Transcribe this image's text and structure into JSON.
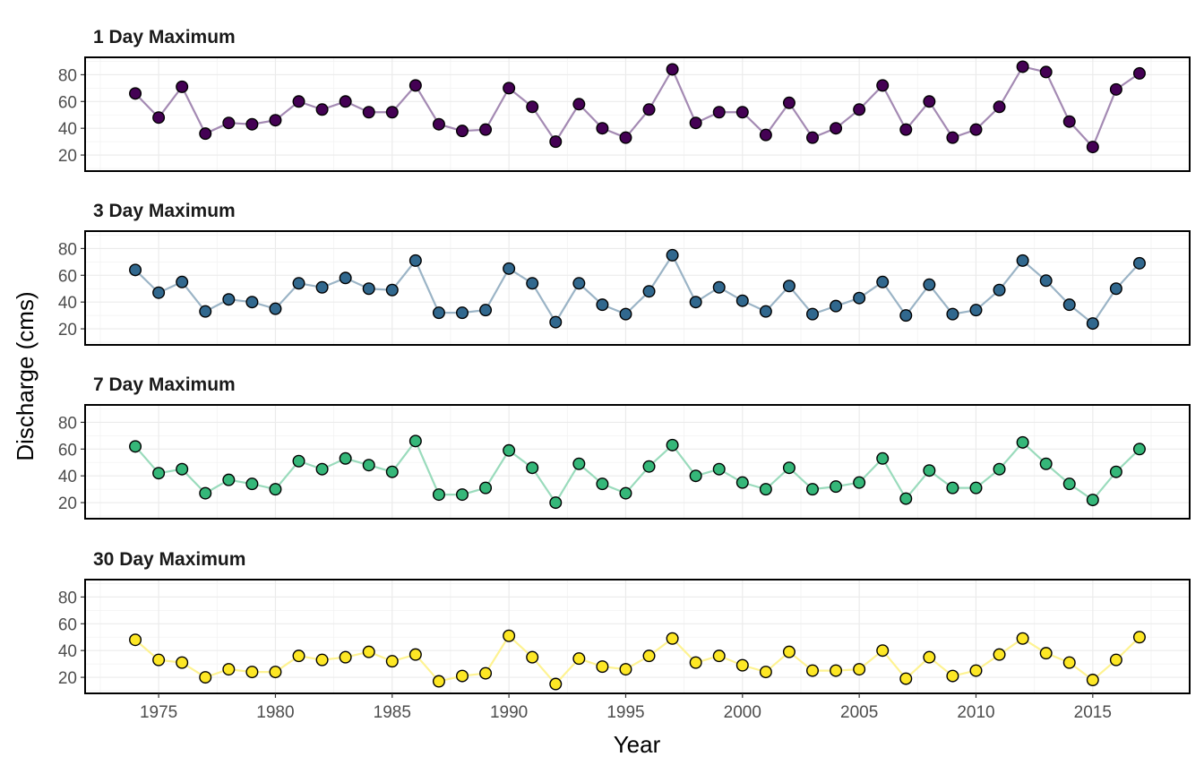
{
  "chart_data": {
    "type": "line",
    "layout": "faceted",
    "xlabel": "Year",
    "ylabel": "Discharge (cms)",
    "xlim": [
      1971.85,
      1019.15
    ],
    "ylim": [
      8,
      93
    ],
    "xticks": [
      1975,
      1980,
      1985,
      1990,
      1995,
      2000,
      2005,
      2010,
      2015
    ],
    "yticks": [
      20,
      40,
      60,
      80
    ],
    "grid": true,
    "legend": "none",
    "x": [
      1974,
      1975,
      1976,
      1977,
      1978,
      1979,
      1980,
      1981,
      1982,
      1983,
      1984,
      1985,
      1986,
      1987,
      1988,
      1989,
      1990,
      1991,
      1992,
      1993,
      1994,
      1995,
      1996,
      1997,
      1998,
      1999,
      2000,
      2001,
      2002,
      2003,
      2004,
      2005,
      2006,
      2007,
      2008,
      2009,
      2010,
      2011,
      2012,
      2013,
      2014,
      2015,
      2016,
      2017
    ],
    "series": [
      {
        "name": "1 Day Maximum",
        "fill": "#440154",
        "line": "#a48ab3",
        "values": [
          66,
          48,
          71,
          36,
          44,
          43,
          46,
          60,
          54,
          60,
          52,
          52,
          72,
          43,
          38,
          39,
          70,
          56,
          30,
          58,
          40,
          33,
          54,
          84,
          44,
          52,
          52,
          35,
          59,
          33,
          40,
          54,
          72,
          39,
          60,
          33,
          39,
          56,
          86,
          82,
          45,
          26,
          69,
          81
        ]
      },
      {
        "name": "3 Day Maximum",
        "fill": "#31688e",
        "line": "#9bb4c6",
        "values": [
          64,
          47,
          55,
          33,
          42,
          40,
          35,
          54,
          51,
          58,
          50,
          49,
          71,
          32,
          32,
          34,
          65,
          54,
          25,
          54,
          38,
          31,
          48,
          75,
          40,
          51,
          41,
          33,
          52,
          31,
          37,
          43,
          55,
          30,
          53,
          31,
          34,
          49,
          71,
          56,
          38,
          24,
          50,
          69
        ]
      },
      {
        "name": "7 Day Maximum",
        "fill": "#35b779",
        "line": "#9adbbc",
        "values": [
          62,
          42,
          45,
          27,
          37,
          34,
          30,
          51,
          45,
          53,
          48,
          43,
          66,
          26,
          26,
          31,
          59,
          46,
          20,
          49,
          34,
          27,
          47,
          63,
          40,
          45,
          35,
          30,
          46,
          30,
          32,
          35,
          53,
          23,
          44,
          31,
          31,
          45,
          65,
          49,
          34,
          22,
          43,
          60
        ]
      },
      {
        "name": "30 Day Maximum",
        "fill": "#fde725",
        "line": "#fef392",
        "values": [
          48,
          33,
          31,
          20,
          26,
          24,
          24,
          36,
          33,
          35,
          39,
          32,
          37,
          17,
          21,
          23,
          51,
          35,
          15,
          34,
          28,
          26,
          36,
          49,
          31,
          36,
          29,
          24,
          39,
          25,
          25,
          26,
          40,
          19,
          35,
          21,
          25,
          37,
          49,
          38,
          31,
          18,
          33,
          50
        ]
      }
    ]
  }
}
